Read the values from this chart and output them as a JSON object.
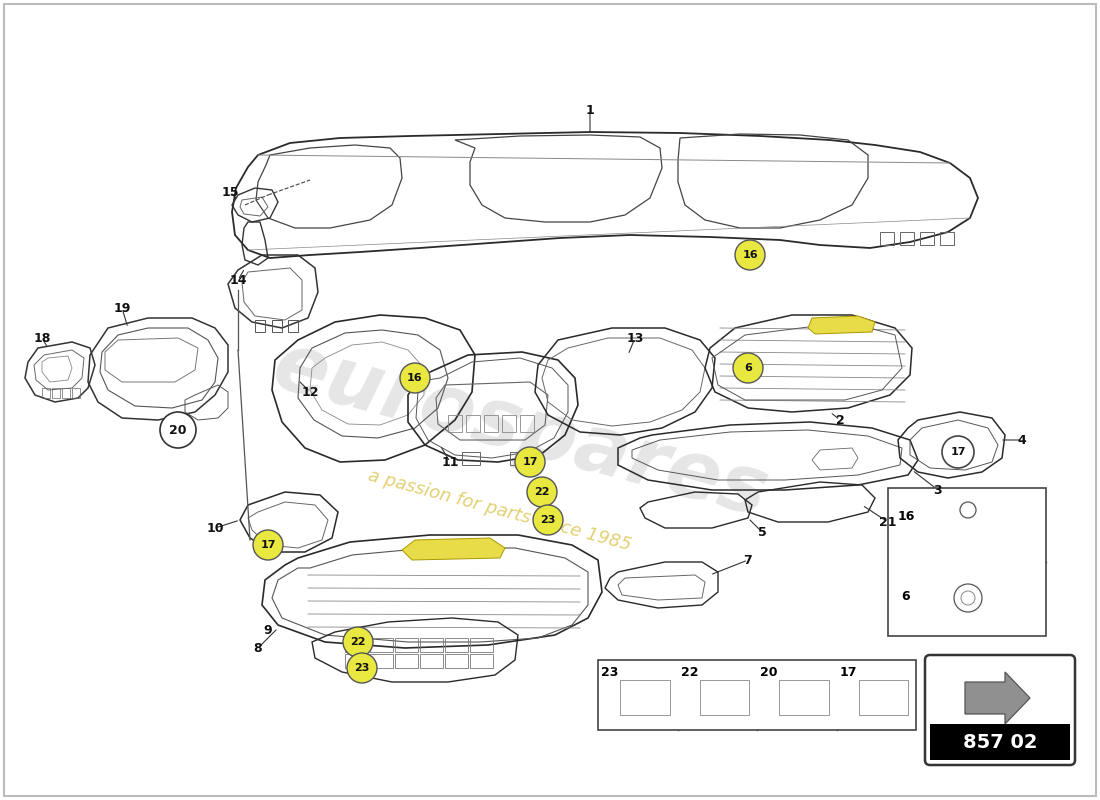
{
  "background_color": "#ffffff",
  "watermark_text": "eurospares",
  "watermark_sub": "a passion for parts since 1985",
  "part_number_text": "857 02",
  "fig_width": 11.0,
  "fig_height": 8.0,
  "dpi": 100
}
